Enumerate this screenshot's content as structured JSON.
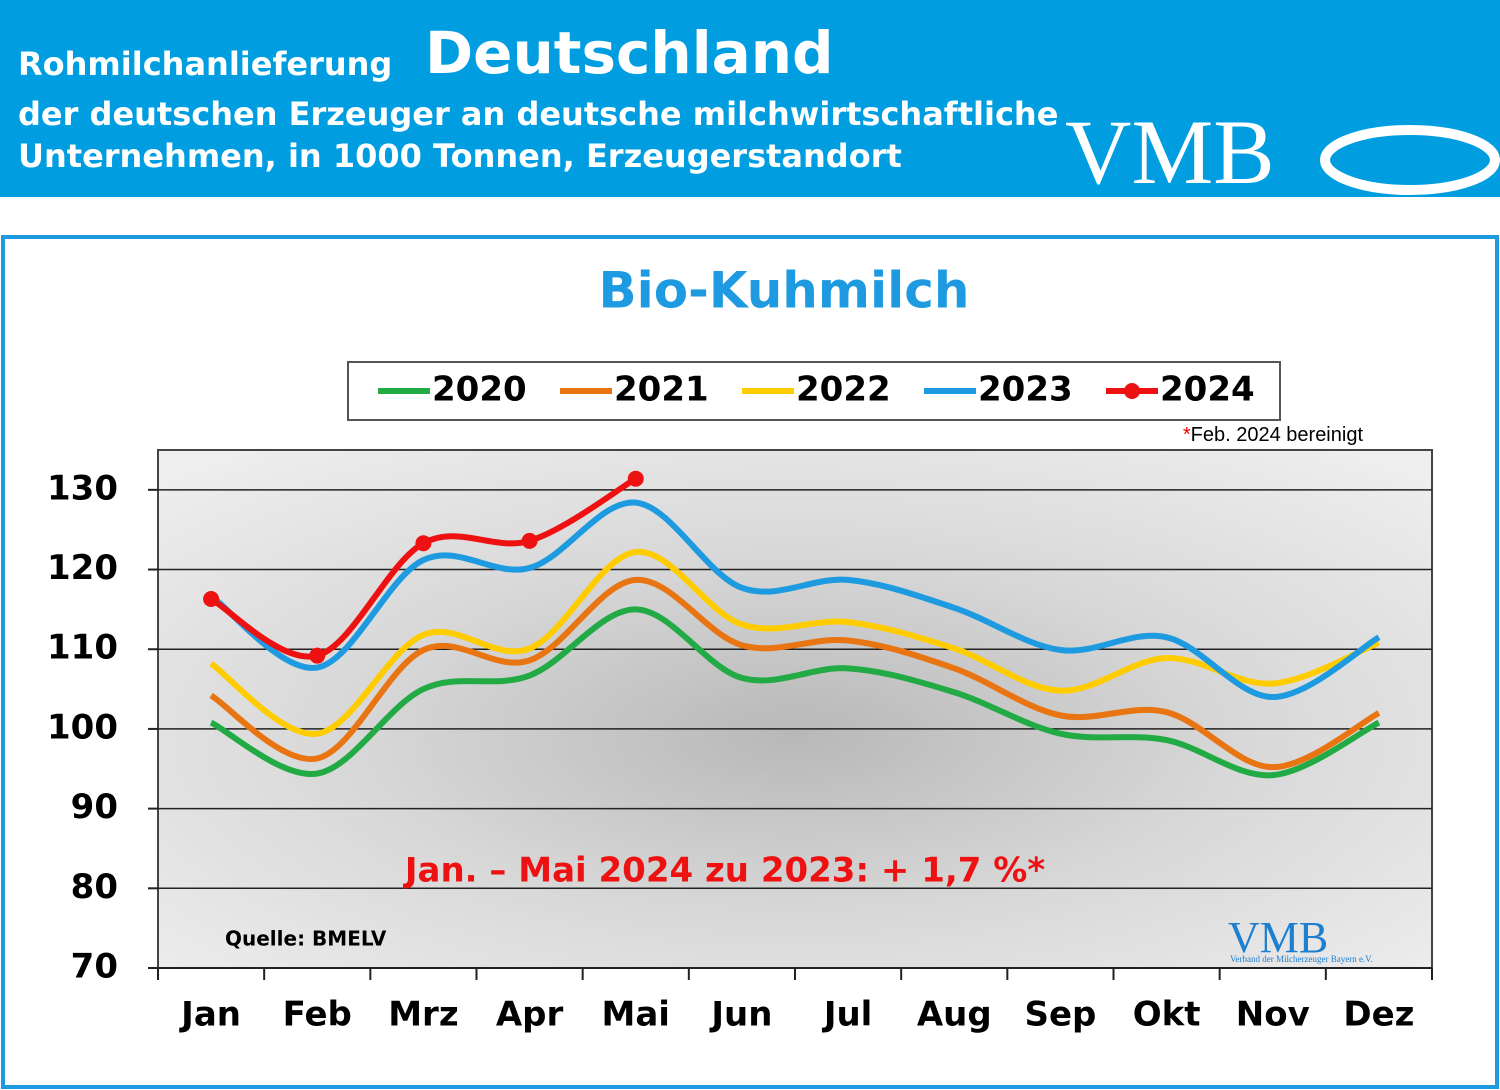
{
  "header": {
    "title_prefix": "Rohmilchanlieferung",
    "title_main": "Deutschland",
    "line2": "der deutschen Erzeuger an deutsche milchwirtschaftliche",
    "line3": "Unternehmen, in 1000 Tonnen, Erzeugerstandort",
    "logo": "VMB"
  },
  "chart_data": {
    "type": "line",
    "title": "Bio-Kuhmilch",
    "categories": [
      "Jan",
      "Feb",
      "Mrz",
      "Apr",
      "Mai",
      "Jun",
      "Jul",
      "Aug",
      "Sep",
      "Okt",
      "Nov",
      "Dez"
    ],
    "series": [
      {
        "name": "2020",
        "color": "#22aa44",
        "values": [
          100.8,
          94.4,
          105,
          106.7,
          115,
          106.4,
          107.6,
          104.6,
          99.4,
          98.6,
          94.2,
          100.8
        ]
      },
      {
        "name": "2021",
        "color": "#e87511",
        "values": [
          104.2,
          96.3,
          109.9,
          108.6,
          118.7,
          110.5,
          111.1,
          107.6,
          101.7,
          102.1,
          95.2,
          102
        ]
      },
      {
        "name": "2022",
        "color": "#ffcc00",
        "values": [
          108.2,
          99.4,
          111.8,
          110.1,
          122.2,
          113.1,
          113.4,
          110.1,
          104.8,
          108.9,
          105.7,
          110.8
        ]
      },
      {
        "name": "2023",
        "color": "#1e9be0",
        "values": [
          116.7,
          107.7,
          121.2,
          120.2,
          128.4,
          117.7,
          118.7,
          115.2,
          109.9,
          111.5,
          104,
          111.5
        ]
      },
      {
        "name": "2024",
        "color": "#ee1111",
        "marker": true,
        "values": [
          116.3,
          109.2,
          123.3,
          123.6,
          131.4,
          null,
          null,
          null,
          null,
          null,
          null,
          null
        ]
      }
    ],
    "ylim": [
      70,
      135
    ],
    "yticks": [
      70,
      80,
      90,
      100,
      110,
      120,
      130
    ],
    "grid": true,
    "note_star": "*",
    "note": "Feb. 2024 bereinigt",
    "annotation": "Jan. – Mai 2024 zu 2023: + 1,7 %*",
    "source": "Quelle: BMELV",
    "plot_logo": "VMB",
    "plot_logo_sub": "Verband der Milcherzeuger Bayern e.V."
  }
}
